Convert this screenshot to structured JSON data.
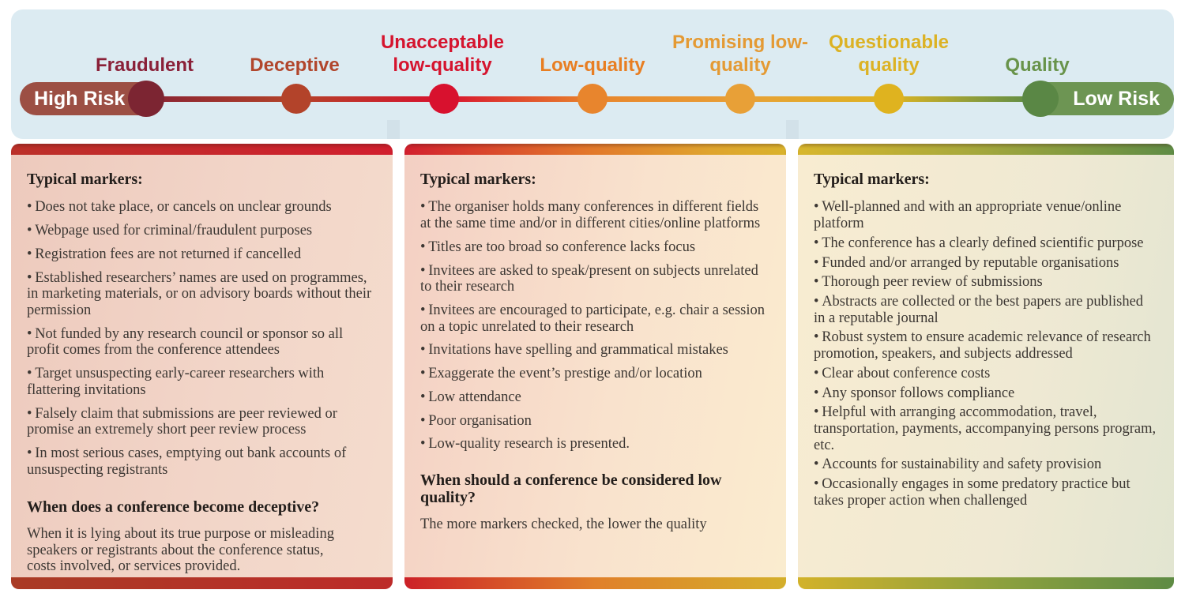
{
  "timeline": {
    "high_risk_label": "High Risk",
    "low_risk_label": "Low Risk",
    "high_risk_bg": "#9c4f44",
    "low_risk_bg": "#6d9553",
    "band_bg": "#dcebf2",
    "stages": [
      {
        "label": "Fraudulent",
        "label_color": "#8a2038",
        "dot_color": "#7c2532"
      },
      {
        "label": "Deceptive",
        "label_color": "#b1462c",
        "dot_color": "#b3432a"
      },
      {
        "label": "Unacceptable low-quality",
        "label_color": "#d5142e",
        "dot_color": "#d8112e"
      },
      {
        "label": "Low-quality",
        "label_color": "#e87e22",
        "dot_color": "#e8852d"
      },
      {
        "label": "Promising low-quality",
        "label_color": "#e49a34",
        "dot_color": "#e8a037"
      },
      {
        "label": "Questionable quality",
        "label_color": "#dcb224",
        "dot_color": "#dfb31f"
      },
      {
        "label": "Quality",
        "label_color": "#68934a",
        "dot_color": "#5a8745"
      }
    ]
  },
  "panels": [
    {
      "accent": "#d11f2e",
      "heading": "Typical markers:",
      "bullets": [
        "Does not take place, or cancels on unclear grounds",
        "Webpage used for criminal/fraudulent purposes",
        "Registration fees are not returned if cancelled",
        "Established researchers’ names are used on programmes, in marketing materials, or on advisory boards without their permission",
        "Not funded by any research council or sponsor so all profit comes from the conference attendees",
        "Target unsuspecting early-career researchers with flattering invitations",
        "Falsely claim that submissions are peer reviewed or promise an extremely short peer review process",
        "In most serious cases, emptying out bank accounts of unsuspecting registrants"
      ],
      "subheading": "When does a conference become deceptive?",
      "paragraph": "When it is lying about its true purpose or misleading speakers or registrants about the conference status, costs involved, or services provided."
    },
    {
      "accent_left": "#d2202e",
      "accent_right": "#d9b22c",
      "heading": "Typical markers:",
      "bullets": [
        "The organiser holds many conferences in different fields at the same time and/or in different cities/online platforms",
        "Titles are too broad so conference lacks focus",
        "Invitees are asked to speak/present on subjects unrelated to their research",
        "Invitees are encouraged to participate, e.g. chair a session on a topic unrelated to their research",
        "Invitations have spelling and grammatical mistakes",
        "Exaggerate the event’s prestige and/or location",
        "Low attendance",
        "Poor organisation",
        "Low-quality research is presented."
      ],
      "subheading": "When should a conference be considered low quality?",
      "paragraph": "The more markers checked, the lower the quality"
    },
    {
      "accent_left": "#d8b62c",
      "accent_right": "#5f8c45",
      "heading": "Typical markers:",
      "bullets": [
        "Well-planned and with an appropriate venue/online platform",
        "The conference has a clearly defined scientific purpose",
        "Funded and/or arranged by reputable organisations",
        "Thorough peer review of submissions",
        "Abstracts are collected or the best papers are published in a reputable journal",
        "Robust system to ensure academic relevance of research promotion, speakers, and subjects addressed",
        "Clear about conference costs",
        "Any sponsor follows compliance",
        "Helpful with arranging accommodation, travel, transportation, payments, accompanying persons program, etc.",
        "Accounts for sustainability and safety provision",
        "Occasionally engages in some predatory practice but takes proper action when challenged"
      ]
    }
  ]
}
